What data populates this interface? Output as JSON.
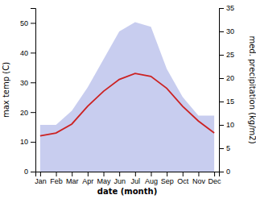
{
  "chart_data": {
    "type": "line",
    "categories": [
      "Jan",
      "Feb",
      "Mar",
      "Apr",
      "May",
      "Jun",
      "Jul",
      "Aug",
      "Sep",
      "Oct",
      "Nov",
      "Dec"
    ],
    "xlabel": "date (month)",
    "ylabel": "max temp (C)",
    "y2label": "med. precipitation (kg/m2)",
    "ylim": [
      0,
      55
    ],
    "yticks": [
      0,
      10,
      20,
      30,
      40,
      50
    ],
    "y2lim": [
      0,
      35
    ],
    "y2ticks": [
      0,
      5,
      10,
      15,
      20,
      25,
      30,
      35
    ],
    "grid": false,
    "series": [
      {
        "type": "area",
        "axis": "y2",
        "color": "#b0b8e8",
        "values": [
          10,
          10,
          13,
          18,
          24,
          30,
          32,
          31,
          22,
          16,
          12,
          12
        ]
      },
      {
        "type": "line",
        "color": "#cc2222",
        "values": [
          12,
          13,
          16,
          22,
          27,
          31,
          33,
          32,
          28,
          22,
          17,
          13
        ]
      }
    ]
  }
}
